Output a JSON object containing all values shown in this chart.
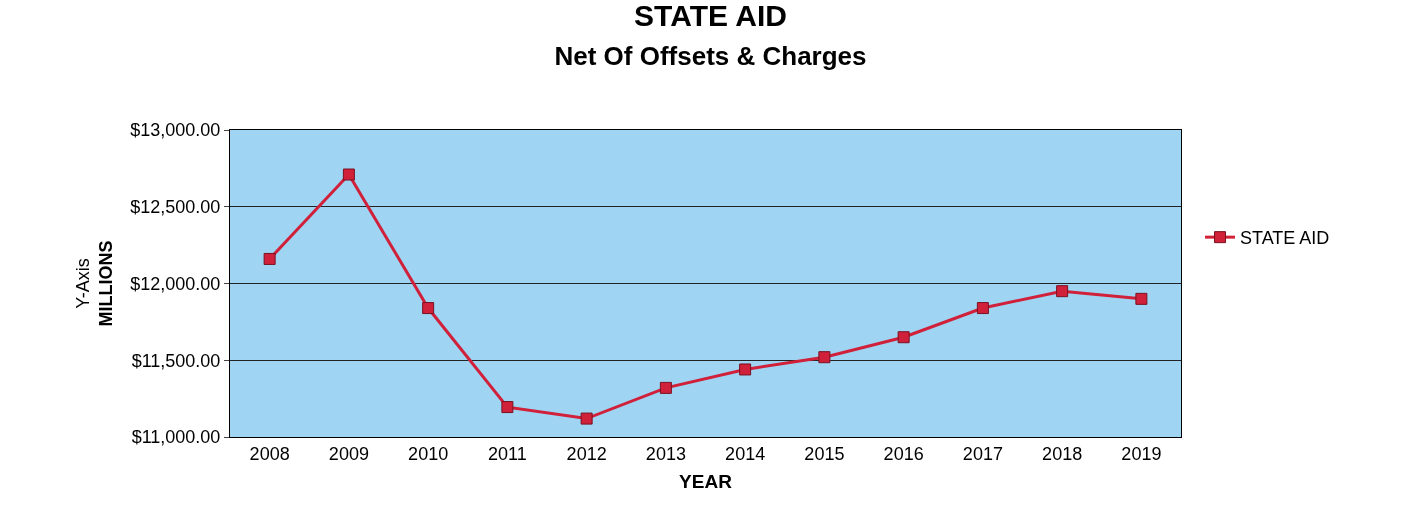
{
  "chart_data": {
    "type": "line",
    "title": "STATE AID",
    "subtitle": "Net Of Offsets & Charges",
    "xlabel": "YEAR",
    "ylabel": "Y-Axis\nMILLIONS",
    "categories": [
      "2008",
      "2009",
      "2010",
      "2011",
      "2012",
      "2013",
      "2014",
      "2015",
      "2016",
      "2017",
      "2018",
      "2019"
    ],
    "series": [
      {
        "name": "STATE AID",
        "color": "#d0203a",
        "values": [
          12160,
          12710,
          11840,
          11195,
          11120,
          11320,
          11440,
          11520,
          11650,
          11840,
          11950,
          11900
        ]
      }
    ],
    "ylim": [
      11000,
      13000
    ],
    "yticks": [
      {
        "value": 11000,
        "label": "$11,000.00"
      },
      {
        "value": 11500,
        "label": "$11,500.00"
      },
      {
        "value": 12000,
        "label": "$12,000.00"
      },
      {
        "value": 12500,
        "label": "$12,500.00"
      },
      {
        "value": 13000,
        "label": "$13,000.00"
      }
    ],
    "grid": "y",
    "legend": "right",
    "marker": "square",
    "line_style": "solid"
  }
}
